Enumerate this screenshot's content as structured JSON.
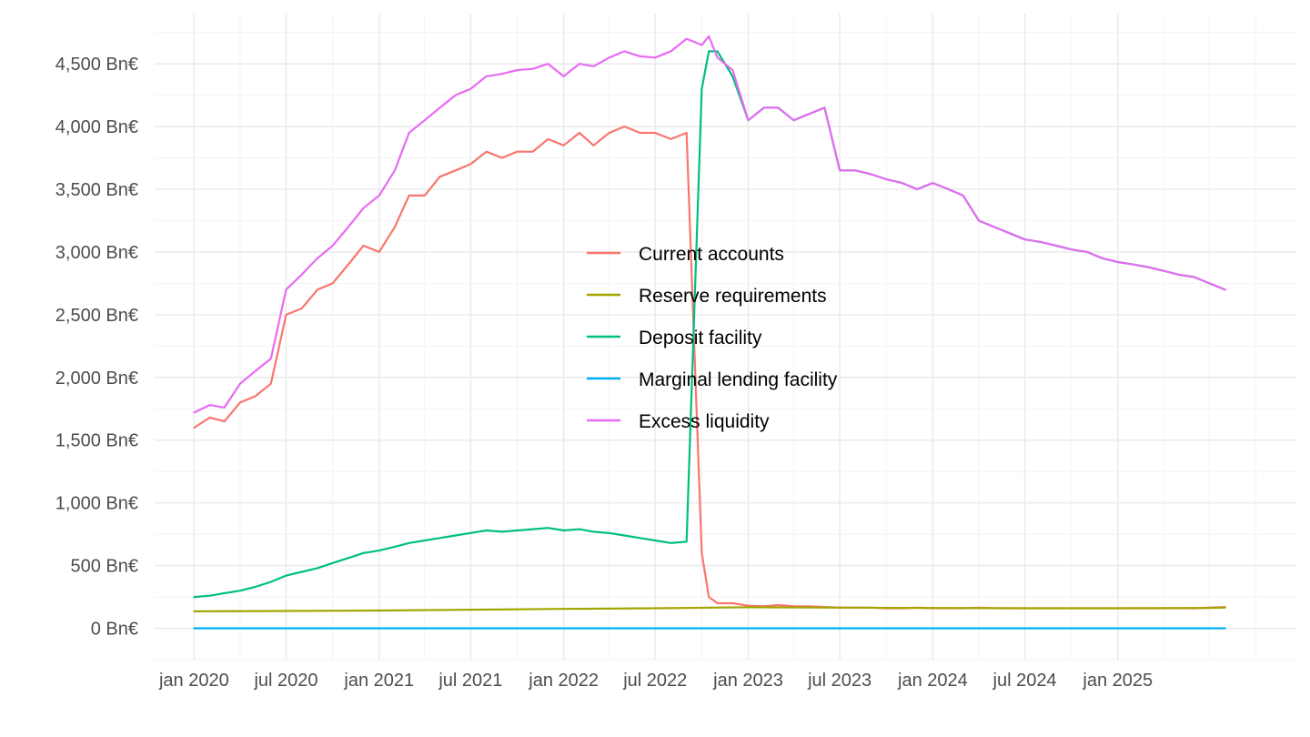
{
  "chart_data": {
    "type": "line",
    "title": "",
    "xlabel": "",
    "ylabel": "",
    "x_axis": {
      "type": "date",
      "range": [
        "2019-10-15",
        "2025-12-20"
      ],
      "ticks": [
        {
          "date": "2020-01-01",
          "label": "jan 2020"
        },
        {
          "date": "2020-07-01",
          "label": "jul 2020"
        },
        {
          "date": "2021-01-01",
          "label": "jan 2021"
        },
        {
          "date": "2021-07-01",
          "label": "jul 2021"
        },
        {
          "date": "2022-01-01",
          "label": "jan 2022"
        },
        {
          "date": "2022-07-01",
          "label": "jul 2022"
        },
        {
          "date": "2023-01-01",
          "label": "jan 2023"
        },
        {
          "date": "2023-07-01",
          "label": "jul 2023"
        },
        {
          "date": "2024-01-01",
          "label": "jan 2024"
        },
        {
          "date": "2024-07-01",
          "label": "jul 2024"
        },
        {
          "date": "2025-01-01",
          "label": "jan 2025"
        }
      ]
    },
    "y_axis": {
      "unit": "Bn€",
      "range": [
        -250,
        4900
      ],
      "ticks": [
        {
          "value": 0,
          "label": "0 Bn€"
        },
        {
          "value": 500,
          "label": "500 Bn€"
        },
        {
          "value": 1000,
          "label": "1,000 Bn€"
        },
        {
          "value": 1500,
          "label": "1,500 Bn€"
        },
        {
          "value": 2000,
          "label": "2,000 Bn€"
        },
        {
          "value": 2500,
          "label": "2,500 Bn€"
        },
        {
          "value": 3000,
          "label": "3,000 Bn€"
        },
        {
          "value": 3500,
          "label": "3,500 Bn€"
        },
        {
          "value": 4000,
          "label": "4,000 Bn€"
        },
        {
          "value": 4500,
          "label": "4,500 Bn€"
        }
      ]
    },
    "grid": true,
    "legend_position": "center",
    "series": [
      {
        "name": "Current accounts",
        "color": "#F8766D",
        "x": [
          "2020-01-01",
          "2020-02-01",
          "2020-03-01",
          "2020-04-01",
          "2020-05-01",
          "2020-06-01",
          "2020-07-01",
          "2020-08-01",
          "2020-09-01",
          "2020-10-01",
          "2020-11-01",
          "2020-12-01",
          "2021-01-01",
          "2021-02-01",
          "2021-03-01",
          "2021-04-01",
          "2021-05-01",
          "2021-06-01",
          "2021-07-01",
          "2021-08-01",
          "2021-09-01",
          "2021-10-01",
          "2021-11-01",
          "2021-12-01",
          "2022-01-01",
          "2022-02-01",
          "2022-03-01",
          "2022-04-01",
          "2022-05-01",
          "2022-06-01",
          "2022-07-01",
          "2022-08-01",
          "2022-09-01",
          "2022-10-01",
          "2022-10-15",
          "2022-11-01",
          "2022-12-01",
          "2023-01-01",
          "2023-02-01",
          "2023-03-01",
          "2023-04-01",
          "2023-05-01",
          "2023-06-01",
          "2023-07-01",
          "2023-08-01",
          "2023-09-01",
          "2023-10-01",
          "2023-11-01",
          "2023-12-01",
          "2024-01-01",
          "2024-02-01",
          "2024-03-01",
          "2024-04-01",
          "2024-05-01",
          "2024-06-01",
          "2024-07-01",
          "2024-08-01",
          "2024-09-01",
          "2024-10-01",
          "2024-11-01",
          "2024-12-01",
          "2025-01-01",
          "2025-02-01",
          "2025-03-01",
          "2025-04-01",
          "2025-05-01",
          "2025-06-01",
          "2025-07-01",
          "2025-08-01"
        ],
        "y": [
          1600,
          1680,
          1650,
          1800,
          1850,
          1950,
          2500,
          2550,
          2700,
          2750,
          2900,
          3050,
          3000,
          3200,
          3450,
          3450,
          3600,
          3650,
          3700,
          3800,
          3750,
          3800,
          3800,
          3900,
          3850,
          3950,
          3850,
          3950,
          4000,
          3950,
          3950,
          3900,
          3950,
          600,
          250,
          200,
          200,
          180,
          175,
          185,
          175,
          175,
          170,
          165,
          165,
          165,
          160,
          160,
          165,
          160,
          160,
          160,
          165,
          160,
          160,
          160,
          160,
          160,
          160,
          160,
          160,
          160,
          160,
          160,
          160,
          160,
          160,
          165,
          170
        ]
      },
      {
        "name": "Reserve requirements",
        "color": "#A3A500",
        "x": [
          "2020-01-01",
          "2020-07-01",
          "2021-01-01",
          "2021-07-01",
          "2022-01-01",
          "2022-07-01",
          "2023-01-01",
          "2023-07-01",
          "2024-01-01",
          "2024-07-01",
          "2025-01-01",
          "2025-07-01",
          "2025-08-01"
        ],
        "y": [
          135,
          138,
          142,
          148,
          155,
          160,
          168,
          165,
          162,
          160,
          160,
          162,
          165
        ]
      },
      {
        "name": "Deposit facility",
        "color": "#00BF7D",
        "x": [
          "2020-01-01",
          "2020-02-01",
          "2020-03-01",
          "2020-04-01",
          "2020-05-01",
          "2020-06-01",
          "2020-07-01",
          "2020-08-01",
          "2020-09-01",
          "2020-10-01",
          "2020-11-01",
          "2020-12-01",
          "2021-01-01",
          "2021-02-01",
          "2021-03-01",
          "2021-04-01",
          "2021-05-01",
          "2021-06-01",
          "2021-07-01",
          "2021-08-01",
          "2021-09-01",
          "2021-10-01",
          "2021-11-01",
          "2021-12-01",
          "2022-01-01",
          "2022-02-01",
          "2022-03-01",
          "2022-04-01",
          "2022-05-01",
          "2022-06-01",
          "2022-07-01",
          "2022-08-01",
          "2022-09-01",
          "2022-10-01",
          "2022-10-15",
          "2022-11-01",
          "2022-12-01",
          "2023-01-01",
          "2023-02-01",
          "2023-03-01",
          "2023-04-01",
          "2023-05-01",
          "2023-06-01",
          "2023-07-01",
          "2023-08-01",
          "2023-09-01",
          "2023-10-01",
          "2023-11-01",
          "2023-12-01",
          "2024-01-01",
          "2024-02-01",
          "2024-03-01",
          "2024-04-01",
          "2024-05-01",
          "2024-06-01",
          "2024-07-01",
          "2024-08-01",
          "2024-09-01",
          "2024-10-01",
          "2024-11-01",
          "2024-12-01",
          "2025-01-01",
          "2025-02-01",
          "2025-03-01",
          "2025-04-01",
          "2025-05-01",
          "2025-06-01",
          "2025-07-01",
          "2025-08-01"
        ],
        "y": [
          250,
          260,
          280,
          300,
          330,
          370,
          420,
          450,
          480,
          520,
          560,
          600,
          620,
          650,
          680,
          700,
          720,
          740,
          760,
          780,
          770,
          780,
          790,
          800,
          780,
          790,
          770,
          760,
          740,
          720,
          700,
          680,
          690,
          4300,
          4600,
          4600,
          4400,
          4050,
          4150,
          4150,
          4050,
          4100,
          4150,
          3650,
          3650,
          3620,
          3580,
          3550,
          3500,
          3550,
          3500,
          3450,
          3250,
          3200,
          3150,
          3100,
          3080,
          3050,
          3020,
          3000,
          2950,
          2920,
          2900,
          2880,
          2850,
          2820,
          2800,
          2750,
          2700
        ]
      },
      {
        "name": "Marginal lending facility",
        "color": "#00B0F6",
        "x": [
          "2020-01-01",
          "2025-08-01"
        ],
        "y": [
          0,
          0
        ]
      },
      {
        "name": "Excess liquidity",
        "color": "#E76BF3",
        "x": [
          "2020-01-01",
          "2020-02-01",
          "2020-03-01",
          "2020-04-01",
          "2020-05-01",
          "2020-06-01",
          "2020-07-01",
          "2020-08-01",
          "2020-09-01",
          "2020-10-01",
          "2020-11-01",
          "2020-12-01",
          "2021-01-01",
          "2021-02-01",
          "2021-03-01",
          "2021-04-01",
          "2021-05-01",
          "2021-06-01",
          "2021-07-01",
          "2021-08-01",
          "2021-09-01",
          "2021-10-01",
          "2021-11-01",
          "2021-12-01",
          "2022-01-01",
          "2022-02-01",
          "2022-03-01",
          "2022-04-01",
          "2022-05-01",
          "2022-06-01",
          "2022-07-01",
          "2022-08-01",
          "2022-09-01",
          "2022-10-01",
          "2022-10-15",
          "2022-11-01",
          "2022-12-01",
          "2023-01-01",
          "2023-02-01",
          "2023-03-01",
          "2023-04-01",
          "2023-05-01",
          "2023-06-01",
          "2023-07-01",
          "2023-08-01",
          "2023-09-01",
          "2023-10-01",
          "2023-11-01",
          "2023-12-01",
          "2024-01-01",
          "2024-02-01",
          "2024-03-01",
          "2024-04-01",
          "2024-05-01",
          "2024-06-01",
          "2024-07-01",
          "2024-08-01",
          "2024-09-01",
          "2024-10-01",
          "2024-11-01",
          "2024-12-01",
          "2025-01-01",
          "2025-02-01",
          "2025-03-01",
          "2025-04-01",
          "2025-05-01",
          "2025-06-01",
          "2025-07-01",
          "2025-08-01"
        ],
        "y": [
          1720,
          1780,
          1760,
          1950,
          2050,
          2150,
          2700,
          2820,
          2950,
          3050,
          3200,
          3350,
          3450,
          3650,
          3950,
          4050,
          4150,
          4250,
          4300,
          4400,
          4420,
          4450,
          4460,
          4500,
          4400,
          4500,
          4480,
          4550,
          4600,
          4560,
          4550,
          4600,
          4700,
          4650,
          4720,
          4550,
          4450,
          4050,
          4150,
          4150,
          4050,
          4100,
          4150,
          3650,
          3650,
          3620,
          3580,
          3550,
          3500,
          3550,
          3500,
          3450,
          3250,
          3200,
          3150,
          3100,
          3080,
          3050,
          3020,
          3000,
          2950,
          2920,
          2900,
          2880,
          2850,
          2820,
          2800,
          2750,
          2700
        ]
      }
    ]
  }
}
